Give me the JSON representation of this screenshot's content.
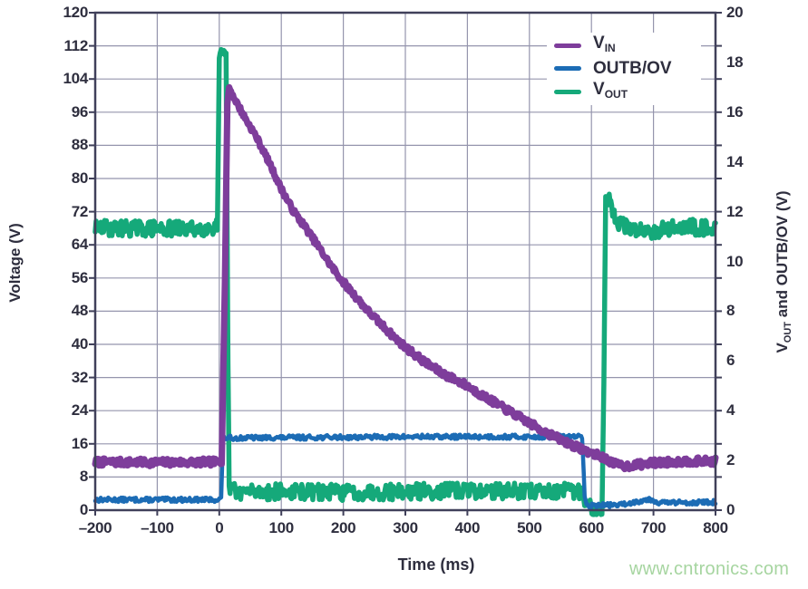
{
  "watermark": {
    "text": "www.cntronics.com",
    "color": "#a6d5a0"
  },
  "chart_data": {
    "type": "line",
    "title": "",
    "xlabel": "Time (ms)",
    "ylabel_left": "Voltage (V)",
    "ylabel_right_parts": [
      {
        "t": "V"
      },
      {
        "sub": "OUT"
      },
      {
        "t": " and OUTB/OV (V)"
      }
    ],
    "xlim": [
      -200,
      800
    ],
    "ylim_left": [
      0,
      120
    ],
    "ylim_right": [
      0,
      20
    ],
    "grid": true,
    "legend_position": "top-right-inside",
    "x_ticks": [
      {
        "v": -200,
        "label": "–200"
      },
      {
        "v": -100,
        "label": "–100"
      },
      {
        "v": 0,
        "label": "0"
      },
      {
        "v": 100,
        "label": "100"
      },
      {
        "v": 200,
        "label": "200"
      },
      {
        "v": 300,
        "label": "300"
      },
      {
        "v": 400,
        "label": "400"
      },
      {
        "v": 500,
        "label": "500"
      },
      {
        "v": 600,
        "label": "600"
      },
      {
        "v": 700,
        "label": "700"
      },
      {
        "v": 800,
        "label": "800"
      }
    ],
    "y_ticks_left": [
      0,
      8,
      16,
      24,
      32,
      40,
      48,
      56,
      64,
      72,
      80,
      88,
      96,
      104,
      112,
      120
    ],
    "y_ticks_right": [
      0,
      2,
      4,
      6,
      8,
      10,
      12,
      14,
      16,
      18,
      20
    ],
    "colors": {
      "v_in": "#7e3d9b",
      "outb_ov": "#1c6cb5",
      "v_out": "#15a97a",
      "grid": "#9595ad",
      "spine": "#40405a",
      "text": "#2e2e3e"
    },
    "legend": [
      {
        "main": "V",
        "sub": "IN",
        "color": "#7e3d9b"
      },
      {
        "main": "OUTB/OV",
        "sub": "",
        "color": "#1c6cb5"
      },
      {
        "main": "V",
        "sub": "OUT",
        "color": "#15a97a"
      }
    ],
    "series": [
      {
        "name": "V_OUT",
        "axis": "right",
        "color": "#15a97a",
        "width": 5.5,
        "noise": 0.33,
        "seed": 29,
        "points": [
          [
            -200,
            11.35
          ],
          [
            -50,
            11.3
          ],
          [
            -3,
            11.4
          ],
          [
            0,
            18.1
          ],
          [
            3,
            18.25
          ],
          [
            11,
            18.2
          ],
          [
            14,
            6
          ],
          [
            16,
            0.9
          ],
          [
            30,
            0.75
          ],
          [
            200,
            0.72
          ],
          [
            400,
            0.78
          ],
          [
            585,
            0.75
          ],
          [
            589,
            0.15
          ],
          [
            617,
            0.12
          ],
          [
            620,
            5
          ],
          [
            623,
            12.6
          ],
          [
            630,
            12.4
          ],
          [
            638,
            11.7
          ],
          [
            660,
            11.3
          ],
          [
            700,
            11.25
          ],
          [
            750,
            11.4
          ],
          [
            800,
            11.35
          ]
        ]
      },
      {
        "name": "OUTB/OV",
        "axis": "right",
        "color": "#1c6cb5",
        "width": 4.5,
        "noise": 0.09,
        "seed": 13,
        "points": [
          [
            -200,
            0.42
          ],
          [
            0,
            0.42
          ],
          [
            3,
            0.5
          ],
          [
            6,
            2.9
          ],
          [
            300,
            2.95
          ],
          [
            585,
            2.95
          ],
          [
            589,
            0.6
          ],
          [
            592,
            0.18
          ],
          [
            650,
            0.22
          ],
          [
            693,
            0.45
          ],
          [
            710,
            0.3
          ],
          [
            800,
            0.32
          ]
        ]
      },
      {
        "name": "V_IN",
        "axis": "left",
        "color": "#7e3d9b",
        "width": 7,
        "noise": 0.9,
        "seed": 7,
        "points": [
          [
            -200,
            11.6
          ],
          [
            -100,
            11.5
          ],
          [
            -5,
            11.6
          ],
          [
            4,
            12
          ],
          [
            9,
            55
          ],
          [
            13,
            98
          ],
          [
            16,
            102
          ],
          [
            22,
            100
          ],
          [
            40,
            95
          ],
          [
            60,
            90
          ],
          [
            80,
            84
          ],
          [
            100,
            77.5
          ],
          [
            120,
            72
          ],
          [
            140,
            68
          ],
          [
            160,
            63.5
          ],
          [
            180,
            59
          ],
          [
            200,
            55
          ],
          [
            220,
            51.5
          ],
          [
            240,
            48
          ],
          [
            260,
            45
          ],
          [
            280,
            42
          ],
          [
            300,
            39.3
          ],
          [
            320,
            37
          ],
          [
            340,
            34.8
          ],
          [
            360,
            33
          ],
          [
            380,
            31.5
          ],
          [
            400,
            30
          ],
          [
            420,
            28
          ],
          [
            440,
            26.3
          ],
          [
            460,
            24.5
          ],
          [
            480,
            22.8
          ],
          [
            500,
            21
          ],
          [
            520,
            19.3
          ],
          [
            540,
            17.8
          ],
          [
            560,
            16.3
          ],
          [
            580,
            15
          ],
          [
            600,
            13.8
          ],
          [
            615,
            13
          ],
          [
            625,
            12.2
          ],
          [
            640,
            11
          ],
          [
            655,
            10.6
          ],
          [
            670,
            10.9
          ],
          [
            700,
            11.4
          ],
          [
            750,
            11.8
          ],
          [
            800,
            11.8
          ]
        ]
      }
    ]
  }
}
